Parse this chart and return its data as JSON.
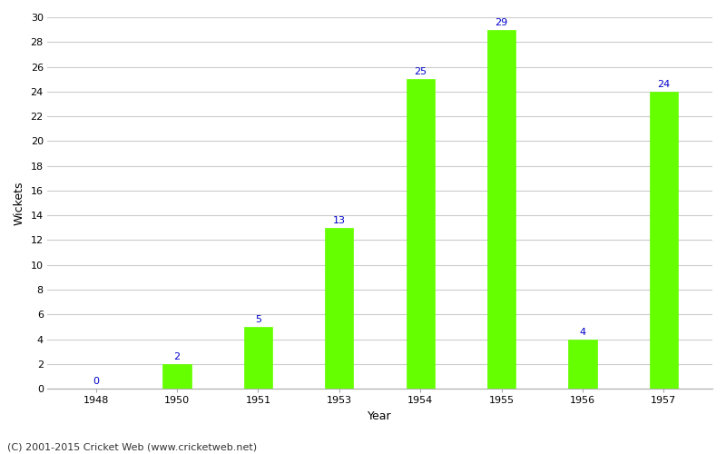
{
  "categories": [
    "1948",
    "1950",
    "1951",
    "1953",
    "1954",
    "1955",
    "1956",
    "1957"
  ],
  "values": [
    0,
    2,
    5,
    13,
    25,
    29,
    4,
    24
  ],
  "bar_color": "#66ff00",
  "bar_edge_color": "#66ff00",
  "label_color": "#0000cc",
  "label_fontsize": 8,
  "xlabel": "Year",
  "ylabel": "Wickets",
  "ylim": [
    0,
    30
  ],
  "yticks": [
    0,
    2,
    4,
    6,
    8,
    10,
    12,
    14,
    16,
    18,
    20,
    22,
    24,
    26,
    28,
    30
  ],
  "background_color": "#ffffff",
  "grid_color": "#cccccc",
  "footer": "(C) 2001-2015 Cricket Web (www.cricketweb.net)",
  "footer_fontsize": 8,
  "axis_label_fontsize": 9,
  "tick_fontsize": 8,
  "bar_width": 0.35
}
